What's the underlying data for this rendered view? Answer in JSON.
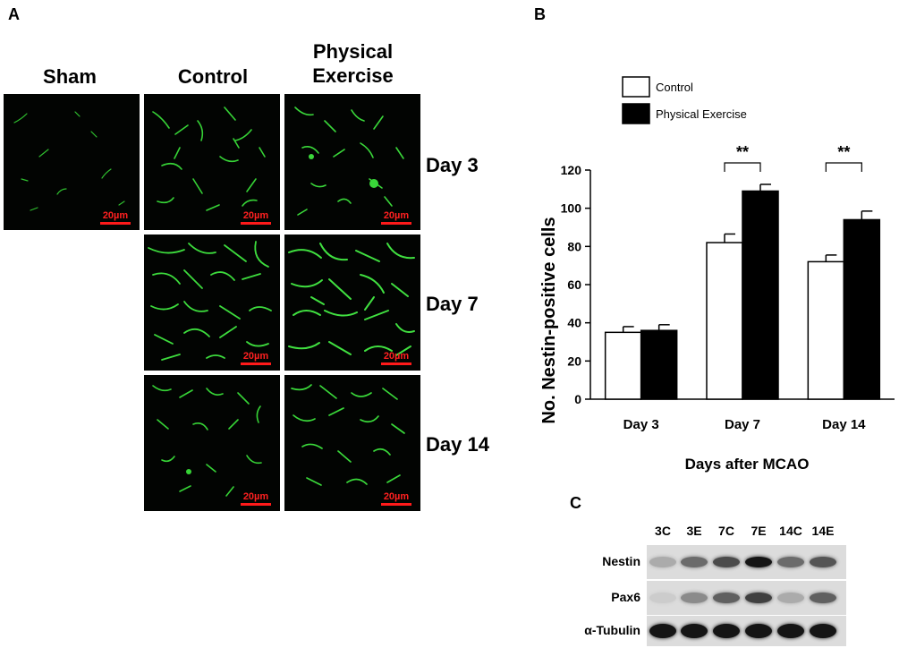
{
  "panel_a": {
    "letter": "A",
    "columns": [
      "Sham",
      "Control",
      "Physical Exercise"
    ],
    "rows": [
      "Day 3",
      "Day 7",
      "Day 14"
    ],
    "scale_bar_label": "20µm",
    "colors": {
      "background": "#020402",
      "signal": "#2fd02f",
      "scale_bar": "#ff1a1a"
    }
  },
  "panel_b": {
    "letter": "B"
  },
  "panel_c": {
    "letter": "C"
  },
  "chart_data": {
    "type": "bar",
    "categories": [
      "Day 3",
      "Day 7",
      "Day 14"
    ],
    "series": [
      {
        "name": "Control",
        "values": [
          35,
          82,
          72
        ],
        "errors": [
          3,
          4.5,
          3.5
        ],
        "color": "#ffffff"
      },
      {
        "name": "Physical Exercise",
        "values": [
          36,
          109,
          94
        ],
        "errors": [
          3,
          3.5,
          4.5
        ],
        "color": "#000000"
      }
    ],
    "significance": [
      {
        "category": "Day 7",
        "label": "**"
      },
      {
        "category": "Day 14",
        "label": "**"
      }
    ],
    "xlabel": "Days after MCAO",
    "ylabel": "No. Nestin-positive cells",
    "ylim": [
      0,
      120
    ],
    "yticks": [
      0,
      20,
      40,
      60,
      80,
      100,
      120
    ],
    "grid": false,
    "legend_position": "top-left"
  },
  "western_blot": {
    "lanes": [
      "3C",
      "3E",
      "7C",
      "7E",
      "14C",
      "14E"
    ],
    "rows": [
      {
        "label": "Nestin",
        "intensity": [
          0.25,
          0.55,
          0.7,
          0.95,
          0.55,
          0.65
        ]
      },
      {
        "label": "Pax6",
        "intensity": [
          0.1,
          0.4,
          0.6,
          0.75,
          0.25,
          0.6
        ]
      },
      {
        "label": "α-Tubulin",
        "intensity": [
          0.95,
          0.95,
          0.95,
          0.95,
          0.95,
          0.95
        ]
      }
    ]
  }
}
